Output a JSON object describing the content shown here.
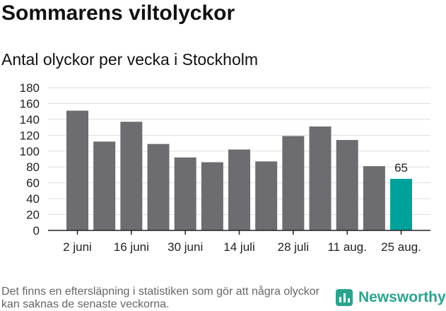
{
  "title": "Sommarens viltolyckor",
  "subtitle": "Antal olyckor per vecka i Stockholm",
  "footnote": "Det finns en eftersläpning i statistiken som gör att några olyckor kan saknas de senaste veckorna.",
  "brand": {
    "name": "Newsworthy",
    "icon": "bar-chart-icon",
    "color": "#2aa48e"
  },
  "colors": {
    "bar": "#6d6c70",
    "highlight": "#00a19a",
    "grid": "#dddddd"
  },
  "chart_data": {
    "type": "bar",
    "title": "Sommarens viltolyckor",
    "subtitle": "Antal olyckor per vecka i Stockholm",
    "xlabel": "",
    "ylabel": "",
    "ylim": [
      0,
      180
    ],
    "y_ticks": [
      0,
      20,
      40,
      60,
      80,
      100,
      120,
      140,
      160,
      180
    ],
    "x_tick_labels": [
      {
        "index": 0,
        "label": "2 juni"
      },
      {
        "index": 2,
        "label": "16 juni"
      },
      {
        "index": 4,
        "label": "30 juni"
      },
      {
        "index": 6,
        "label": "14 juli"
      },
      {
        "index": 8,
        "label": "28 juli"
      },
      {
        "index": 10,
        "label": "11 aug."
      },
      {
        "index": 12,
        "label": "25 aug."
      }
    ],
    "values": [
      151,
      112,
      137,
      109,
      92,
      86,
      102,
      87,
      119,
      131,
      114,
      81,
      65
    ],
    "highlight_index": 12,
    "data_labels": [
      {
        "index": 12,
        "text": "65"
      }
    ],
    "grid": true,
    "legend": "none"
  }
}
